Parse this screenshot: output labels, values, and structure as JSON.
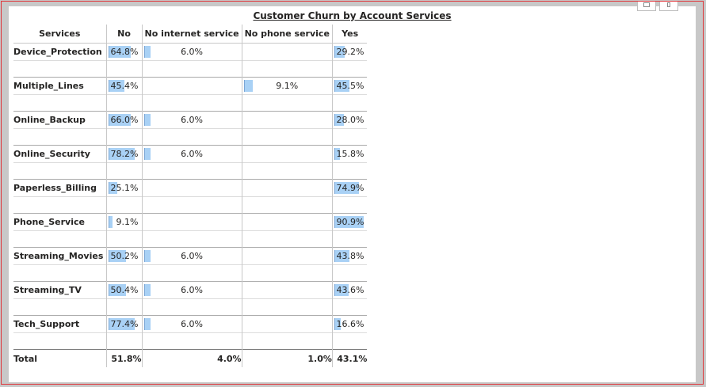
{
  "chart_data": {
    "type": "table",
    "title": "Customer Churn by Account Services",
    "columns": [
      "Services",
      "No",
      "No internet service",
      "No phone service",
      "Yes"
    ],
    "rows": [
      {
        "service": "Device_Protection",
        "no": "64.8%",
        "no_internet": "6.0%",
        "no_phone": "",
        "yes": "29.2%"
      },
      {
        "service": "Multiple_Lines",
        "no": "45.4%",
        "no_internet": "",
        "no_phone": "9.1%",
        "yes": "45.5%"
      },
      {
        "service": "Online_Backup",
        "no": "66.0%",
        "no_internet": "6.0%",
        "no_phone": "",
        "yes": "28.0%"
      },
      {
        "service": "Online_Security",
        "no": "78.2%",
        "no_internet": "6.0%",
        "no_phone": "",
        "yes": "15.8%"
      },
      {
        "service": "Paperless_Billing",
        "no": "25.1%",
        "no_internet": "",
        "no_phone": "",
        "yes": "74.9%"
      },
      {
        "service": "Phone_Service",
        "no": "9.1%",
        "no_internet": "",
        "no_phone": "",
        "yes": "90.9%"
      },
      {
        "service": "Streaming_Movies",
        "no": "50.2%",
        "no_internet": "6.0%",
        "no_phone": "",
        "yes": "43.8%"
      },
      {
        "service": "Streaming_TV",
        "no": "50.4%",
        "no_internet": "6.0%",
        "no_phone": "",
        "yes": "43.6%"
      },
      {
        "service": "Tech_Support",
        "no": "77.4%",
        "no_internet": "6.0%",
        "no_phone": "",
        "yes": "16.6%"
      }
    ],
    "total": {
      "label": "Total",
      "no": "51.8%",
      "no_internet": "4.0%",
      "no_phone": "1.0%",
      "yes": "43.1%"
    },
    "bar_color": "#a9d1f5"
  }
}
